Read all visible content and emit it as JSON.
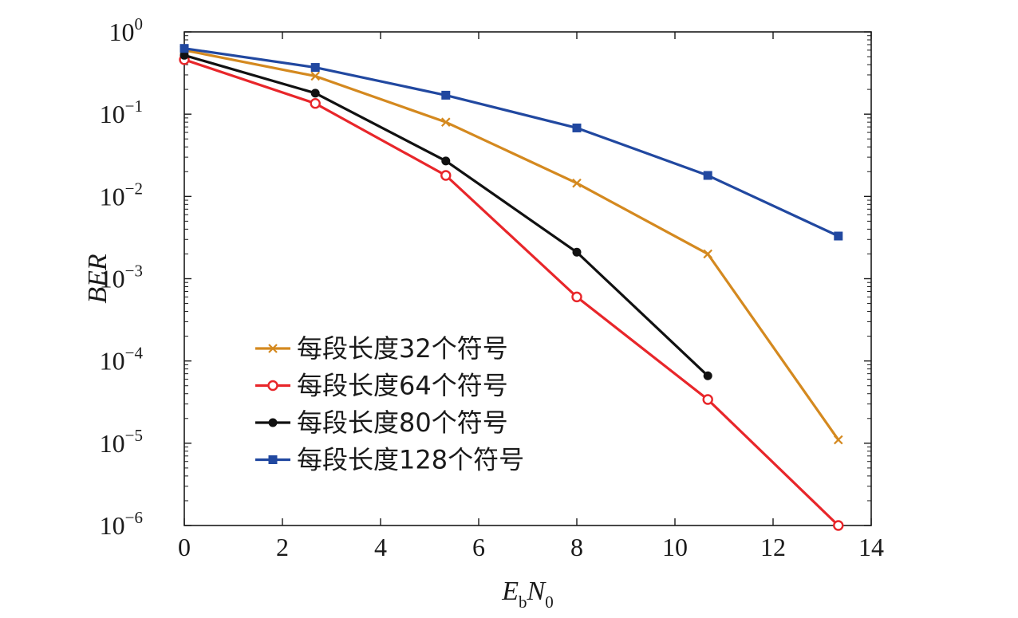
{
  "chart_data": {
    "type": "line",
    "xlabel": {
      "main": "E",
      "sub1": "b",
      "mid": "N",
      "sub2": "0"
    },
    "ylabel": "BER",
    "xlim": [
      0,
      14
    ],
    "ylim": [
      1e-06,
      1
    ],
    "yscale": "log",
    "x_ticks": [
      0,
      2,
      4,
      6,
      8,
      10,
      12,
      14
    ],
    "y_ticks": [
      {
        "value": 1,
        "base": "10",
        "exp": "0"
      },
      {
        "value": 0.1,
        "base": "10",
        "exp": "−1"
      },
      {
        "value": 0.01,
        "base": "10",
        "exp": "−2"
      },
      {
        "value": 0.001,
        "base": "10",
        "exp": "−3"
      },
      {
        "value": 0.0001,
        "base": "10",
        "exp": "−4"
      },
      {
        "value": 1e-05,
        "base": "10",
        "exp": "−5"
      },
      {
        "value": 1e-06,
        "base": "10",
        "exp": "−6"
      }
    ],
    "grid": false,
    "legend_position": "lower-left",
    "series": [
      {
        "name": "每段长度32个符号",
        "color": "#d4891f",
        "marker": "x",
        "x": [
          0,
          2.67,
          5.33,
          8,
          10.67,
          13.33
        ],
        "y": [
          0.6,
          0.29,
          0.08,
          0.0145,
          0.002,
          1.1e-05
        ]
      },
      {
        "name": "每段长度64个符号",
        "color": "#e8262a",
        "marker": "circle-open",
        "x": [
          0,
          2.67,
          5.33,
          8,
          10.67,
          13.33
        ],
        "y": [
          0.46,
          0.135,
          0.018,
          0.0006,
          3.4e-05,
          1e-06
        ]
      },
      {
        "name": "每段长度80个符号",
        "color": "#111111",
        "marker": "dot",
        "x": [
          0,
          2.67,
          5.33,
          8,
          10.67
        ],
        "y": [
          0.52,
          0.18,
          0.027,
          0.0021,
          6.6e-05
        ]
      },
      {
        "name": "每段长度128个符号",
        "color": "#2148a0",
        "marker": "square",
        "x": [
          0,
          2.67,
          5.33,
          8,
          10.67,
          13.33
        ],
        "y": [
          0.63,
          0.37,
          0.17,
          0.068,
          0.018,
          0.0033
        ]
      }
    ]
  }
}
